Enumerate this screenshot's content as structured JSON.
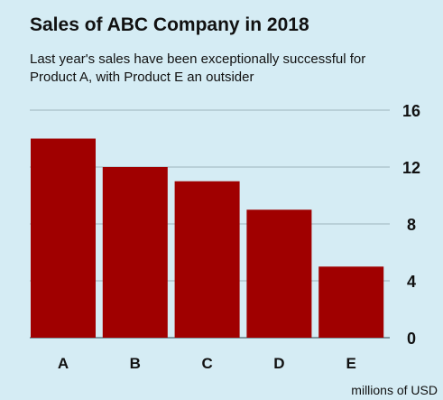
{
  "chart_data": {
    "type": "bar",
    "title": "Sales of ABC Company in 2018",
    "subtitle": "Last year's sales have been exceptionally successful for Product A, with Product E an outsider",
    "categories": [
      "A",
      "B",
      "C",
      "D",
      "E"
    ],
    "values": [
      14,
      12,
      11,
      9,
      5
    ],
    "xlabel": "",
    "ylabel": "",
    "unit_label": "millions of USD",
    "ylim": [
      0,
      16
    ],
    "yticks": [
      0,
      4,
      8,
      12,
      16
    ],
    "y_axis_side": "right",
    "grid": true,
    "bar_color": "#a00000",
    "grid_color": "#a9c0c8"
  }
}
